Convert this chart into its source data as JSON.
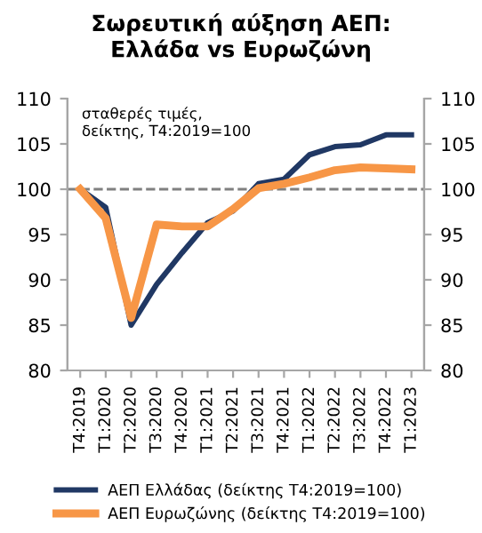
{
  "chart_data": {
    "type": "line",
    "title": "Σωρευτική αύξηση ΑΕΠ:\nΕλλάδα vs Ευρωζώνη",
    "annotations": [
      "σταθερές τιμές,\nδείκτης, Τ4:2019=100"
    ],
    "categories": [
      "Τ4:2019",
      "Τ1:2020",
      "Τ2:2020",
      "Τ3:2020",
      "Τ4:2020",
      "Τ1:2021",
      "Τ2:2021",
      "Τ3:2021",
      "Τ4:2021",
      "Τ1:2022",
      "Τ2:2022",
      "Τ3:2022",
      "Τ4:2022",
      "Τ1:2023"
    ],
    "series": [
      {
        "name": "ΑΕΠ Ελλάδας (δείκτης Τ4:2019=100)",
        "color": "#203864",
        "values": [
          100,
          98.0,
          85.0,
          89.5,
          93.0,
          96.3,
          97.6,
          100.6,
          101.1,
          103.8,
          104.7,
          104.9,
          106.0,
          106.0
        ]
      },
      {
        "name": "ΑΕΠ Ευρωζώνης (δείκτης Τ4:2019=100)",
        "color": "#f79646",
        "values": [
          100,
          96.8,
          85.8,
          96.1,
          95.9,
          95.9,
          97.8,
          100.1,
          100.6,
          101.3,
          102.1,
          102.4,
          102.3,
          102.2
        ]
      }
    ],
    "ylim": [
      80,
      110
    ],
    "yticks": [
      80,
      85,
      90,
      95,
      100,
      105,
      110
    ],
    "y2lim": [
      80,
      110
    ],
    "y2ticks": [
      80,
      85,
      90,
      95,
      100,
      105,
      110
    ],
    "ref_lines": [
      {
        "axis": "y",
        "value": 100,
        "color": "#808080",
        "line_style": "dashed"
      }
    ],
    "grid": false,
    "legend": "bottom",
    "marker": "none",
    "line_style": "solid"
  }
}
